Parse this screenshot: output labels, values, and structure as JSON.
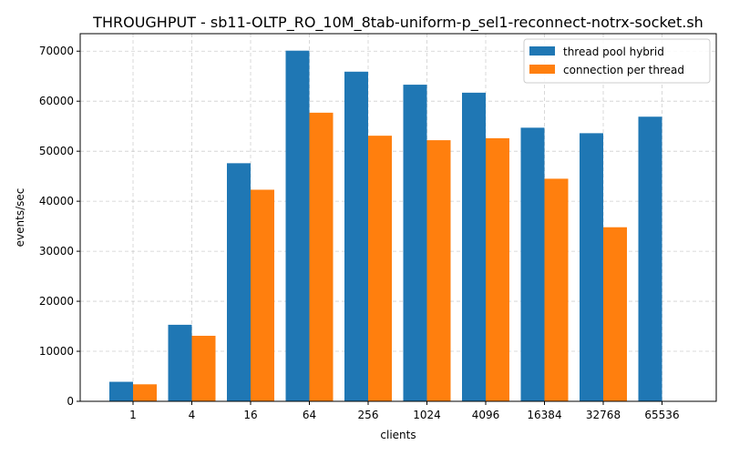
{
  "chart_data": {
    "type": "bar",
    "title": "THROUGHPUT - sb11-OLTP_RO_10M_8tab-uniform-p_sel1-reconnect-notrx-socket.sh",
    "xlabel": "clients",
    "ylabel": "events/sec",
    "categories": [
      "1",
      "4",
      "16",
      "64",
      "256",
      "1024",
      "4096",
      "16384",
      "32768",
      "65536"
    ],
    "ylim": [
      0,
      73500
    ],
    "yticks": [
      0,
      10000,
      20000,
      30000,
      40000,
      50000,
      60000,
      70000
    ],
    "grid": true,
    "legend_position": "top-right",
    "series": [
      {
        "name": "thread pool hybrid",
        "color": "#1f77b4",
        "values": [
          3900,
          15300,
          47600,
          70100,
          65900,
          63300,
          61700,
          54700,
          53600,
          56900
        ]
      },
      {
        "name": "connection per thread",
        "color": "#ff7f0e",
        "values": [
          3400,
          13100,
          42300,
          57700,
          53100,
          52200,
          52600,
          44500,
          34800,
          null
        ]
      }
    ]
  }
}
